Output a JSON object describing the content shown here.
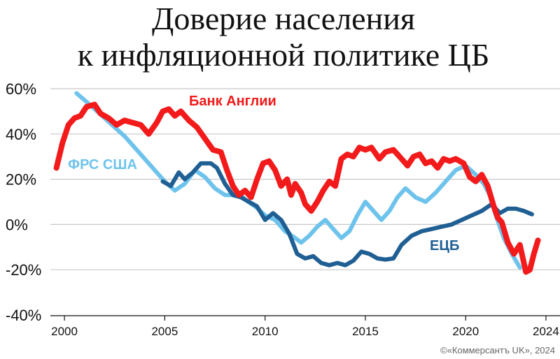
{
  "chart_data": {
    "type": "line",
    "title_line1": "Доверие населения",
    "title_line2": "к инфляционной политике ЦБ",
    "xlabel": "",
    "ylabel": "",
    "xlim": [
      1999.3,
      2024.7
    ],
    "ylim": [
      -40,
      60
    ],
    "y_ticks": [
      60,
      40,
      20,
      0,
      -20,
      -40
    ],
    "y_tick_labels": [
      "60%",
      "40%",
      "20%",
      "0%",
      "-20%",
      "-40%"
    ],
    "x_ticks": [
      2000,
      2005,
      2010,
      2015,
      2020,
      2024
    ],
    "x_tick_labels": [
      "2000",
      "2005",
      "2010",
      "2015",
      "2020",
      "2024"
    ],
    "grid": true,
    "credit": "©«Коммерсантъ UK», 2024",
    "series": [
      {
        "name": "ФРС США",
        "color": "#6ec3ec",
        "points": [
          [
            2000.6,
            58
          ],
          [
            2001.0,
            55
          ],
          [
            2001.5,
            51
          ],
          [
            2002.0,
            47
          ],
          [
            2002.5,
            43
          ],
          [
            2003.0,
            39
          ],
          [
            2003.5,
            34
          ],
          [
            2004.0,
            29
          ],
          [
            2004.5,
            24
          ],
          [
            2005.0,
            19
          ],
          [
            2005.5,
            15
          ],
          [
            2006.0,
            18
          ],
          [
            2006.5,
            24
          ],
          [
            2007.0,
            21
          ],
          [
            2007.5,
            16
          ],
          [
            2008.0,
            13
          ],
          [
            2008.3,
            13
          ],
          [
            2008.7,
            14
          ],
          [
            2009.0,
            11
          ],
          [
            2009.5,
            8
          ],
          [
            2010.0,
            4
          ],
          [
            2010.5,
            2
          ],
          [
            2011.0,
            -3
          ],
          [
            2011.5,
            -6
          ],
          [
            2011.8,
            -8
          ],
          [
            2012.2,
            -5
          ],
          [
            2012.6,
            -1
          ],
          [
            2013.0,
            2
          ],
          [
            2013.4,
            -2
          ],
          [
            2013.8,
            -6
          ],
          [
            2014.2,
            -3
          ],
          [
            2014.6,
            4
          ],
          [
            2015.0,
            10
          ],
          [
            2015.4,
            6
          ],
          [
            2015.8,
            2
          ],
          [
            2016.2,
            6
          ],
          [
            2016.6,
            12
          ],
          [
            2017.0,
            16
          ],
          [
            2017.5,
            12
          ],
          [
            2018.0,
            10
          ],
          [
            2018.5,
            14
          ],
          [
            2019.0,
            19
          ],
          [
            2019.5,
            24
          ],
          [
            2020.0,
            26
          ],
          [
            2020.5,
            22
          ],
          [
            2020.9,
            18
          ],
          [
            2021.2,
            13
          ],
          [
            2021.5,
            4
          ],
          [
            2021.9,
            -6
          ],
          [
            2022.3,
            -13
          ],
          [
            2022.7,
            -19
          ]
        ]
      },
      {
        "name": "ЕЦБ",
        "color": "#1f5f93",
        "points": [
          [
            2004.9,
            19
          ],
          [
            2005.3,
            17
          ],
          [
            2005.7,
            23
          ],
          [
            2006.0,
            20
          ],
          [
            2006.4,
            23
          ],
          [
            2006.8,
            27
          ],
          [
            2007.3,
            27
          ],
          [
            2007.6,
            25
          ],
          [
            2008.0,
            18
          ],
          [
            2008.4,
            13
          ],
          [
            2008.8,
            12
          ],
          [
            2009.2,
            10
          ],
          [
            2009.6,
            8
          ],
          [
            2010.0,
            2
          ],
          [
            2010.4,
            5
          ],
          [
            2010.8,
            2
          ],
          [
            2011.2,
            -4
          ],
          [
            2011.6,
            -13
          ],
          [
            2012.0,
            -15
          ],
          [
            2012.4,
            -14
          ],
          [
            2012.8,
            -17
          ],
          [
            2013.2,
            -18
          ],
          [
            2013.6,
            -17
          ],
          [
            2014.0,
            -18
          ],
          [
            2014.4,
            -16
          ],
          [
            2014.8,
            -12
          ],
          [
            2015.2,
            -13
          ],
          [
            2015.6,
            -15
          ],
          [
            2016.0,
            -15.5
          ],
          [
            2016.4,
            -15
          ],
          [
            2016.8,
            -9
          ],
          [
            2017.3,
            -5
          ],
          [
            2017.8,
            -3
          ],
          [
            2018.3,
            -2
          ],
          [
            2018.8,
            -1
          ],
          [
            2019.3,
            0
          ],
          [
            2019.8,
            2
          ],
          [
            2020.3,
            4
          ],
          [
            2020.8,
            6
          ],
          [
            2021.3,
            9
          ],
          [
            2021.7,
            5
          ],
          [
            2022.1,
            7
          ],
          [
            2022.5,
            7
          ],
          [
            2022.9,
            6
          ],
          [
            2023.3,
            4.5
          ]
        ]
      },
      {
        "name": "Банк Англии",
        "color": "#f21a1a",
        "points": [
          [
            1999.6,
            25
          ],
          [
            1999.9,
            36
          ],
          [
            2000.2,
            44
          ],
          [
            2000.5,
            47
          ],
          [
            2000.8,
            48
          ],
          [
            2001.1,
            52
          ],
          [
            2001.5,
            53
          ],
          [
            2001.8,
            49
          ],
          [
            2002.2,
            47
          ],
          [
            2002.6,
            44
          ],
          [
            2003.0,
            46
          ],
          [
            2003.4,
            45
          ],
          [
            2003.8,
            44
          ],
          [
            2004.2,
            40
          ],
          [
            2004.6,
            45
          ],
          [
            2004.9,
            50
          ],
          [
            2005.2,
            51
          ],
          [
            2005.5,
            48
          ],
          [
            2005.8,
            50
          ],
          [
            2006.2,
            46
          ],
          [
            2006.6,
            43
          ],
          [
            2007.0,
            38
          ],
          [
            2007.4,
            33
          ],
          [
            2007.8,
            32
          ],
          [
            2008.1,
            24
          ],
          [
            2008.4,
            17
          ],
          [
            2008.7,
            13
          ],
          [
            2009.0,
            15
          ],
          [
            2009.3,
            12
          ],
          [
            2009.6,
            20
          ],
          [
            2009.9,
            27
          ],
          [
            2010.2,
            28
          ],
          [
            2010.5,
            24
          ],
          [
            2010.8,
            17
          ],
          [
            2011.1,
            20
          ],
          [
            2011.3,
            13
          ],
          [
            2011.5,
            18
          ],
          [
            2011.8,
            14
          ],
          [
            2012.0,
            9
          ],
          [
            2012.3,
            6
          ],
          [
            2012.6,
            10
          ],
          [
            2012.9,
            15
          ],
          [
            2013.2,
            19
          ],
          [
            2013.5,
            17
          ],
          [
            2013.8,
            29
          ],
          [
            2014.1,
            31
          ],
          [
            2014.4,
            30
          ],
          [
            2014.7,
            34
          ],
          [
            2015.0,
            33
          ],
          [
            2015.3,
            34
          ],
          [
            2015.7,
            29
          ],
          [
            2016.0,
            32
          ],
          [
            2016.4,
            33
          ],
          [
            2016.8,
            29
          ],
          [
            2017.1,
            26
          ],
          [
            2017.4,
            30
          ],
          [
            2017.7,
            31
          ],
          [
            2018.0,
            27
          ],
          [
            2018.3,
            28
          ],
          [
            2018.6,
            25
          ],
          [
            2018.9,
            29
          ],
          [
            2019.2,
            28
          ],
          [
            2019.5,
            29
          ],
          [
            2019.9,
            27
          ],
          [
            2020.2,
            21
          ],
          [
            2020.5,
            19
          ],
          [
            2020.8,
            22
          ],
          [
            2021.1,
            17
          ],
          [
            2021.4,
            8
          ],
          [
            2021.6,
            3
          ],
          [
            2021.8,
            1
          ],
          [
            2022.1,
            -8
          ],
          [
            2022.4,
            -13
          ],
          [
            2022.7,
            -9
          ],
          [
            2023.0,
            -21
          ],
          [
            2023.2,
            -20
          ],
          [
            2023.4,
            -13
          ],
          [
            2023.6,
            -7
          ]
        ]
      }
    ]
  }
}
